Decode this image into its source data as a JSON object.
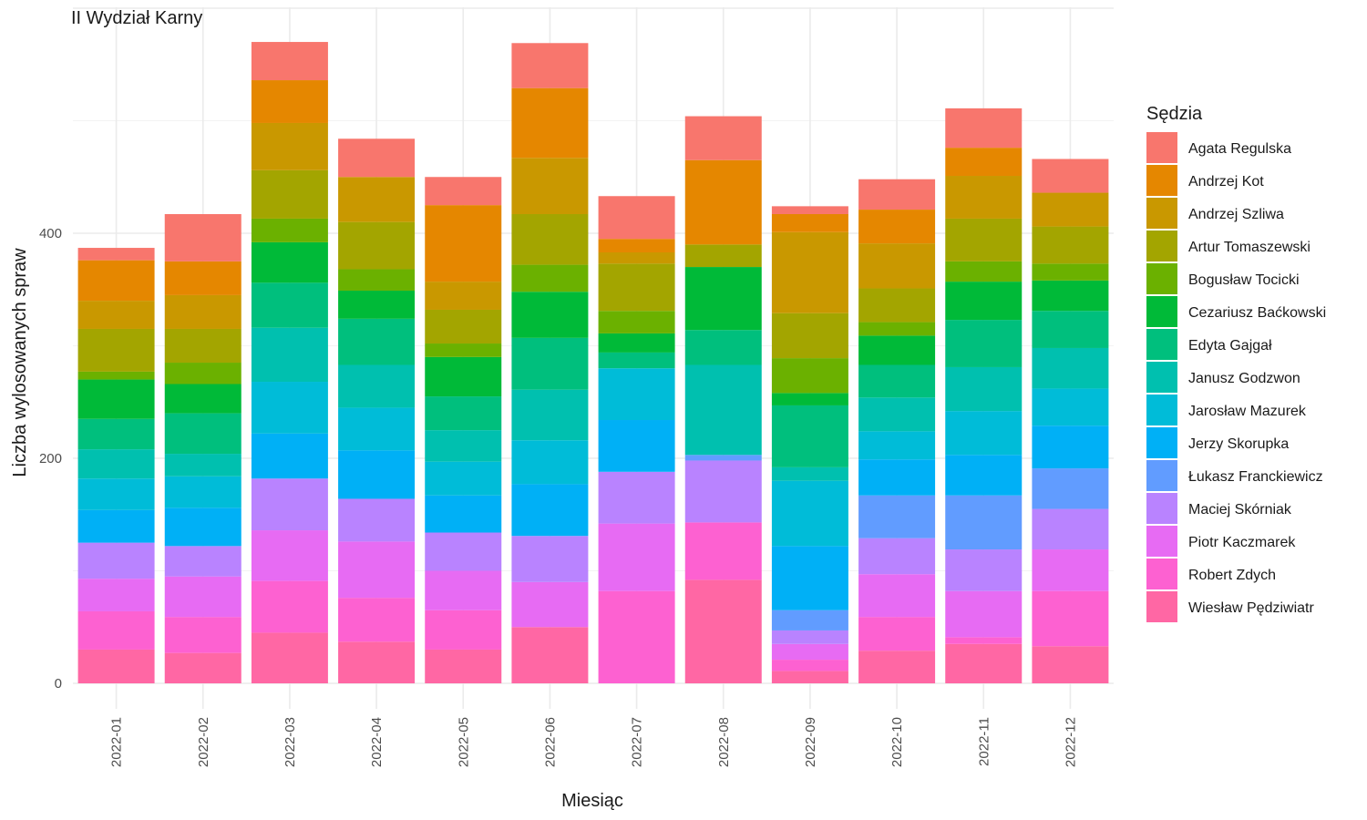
{
  "chart_data": {
    "type": "bar",
    "stacked": true,
    "title": "II Wydział Karny",
    "xlabel": "Miesiąc",
    "ylabel": "Liczba wylosowanych spraw",
    "ylim": [
      0,
      595
    ],
    "yticks": [
      0,
      200,
      400
    ],
    "grid": true,
    "legend_position": "right",
    "legend_title": "Sędzia",
    "categories": [
      "2022-01",
      "2022-02",
      "2022-03",
      "2022-04",
      "2022-05",
      "2022-06",
      "2022-07",
      "2022-08",
      "2022-09",
      "2022-10",
      "2022-11",
      "2022-12"
    ],
    "series": [
      {
        "name": "Agata Regulska",
        "color": "#F8766D",
        "values": [
          11,
          42,
          34,
          34,
          25,
          40,
          38,
          39,
          7,
          27,
          35,
          30
        ]
      },
      {
        "name": "Andrzej Kot",
        "color": "#E58700",
        "values": [
          36,
          30,
          38,
          0,
          68,
          62,
          12,
          75,
          16,
          30,
          25,
          0
        ]
      },
      {
        "name": "Andrzej Szliwa",
        "color": "#C99800",
        "values": [
          25,
          30,
          42,
          40,
          25,
          50,
          10,
          0,
          72,
          40,
          38,
          30
        ]
      },
      {
        "name": "Artur Tomaszewski",
        "color": "#A3A500",
        "values": [
          38,
          30,
          43,
          42,
          30,
          45,
          42,
          20,
          40,
          30,
          38,
          33
        ]
      },
      {
        "name": "Bogusław Tocicki",
        "color": "#6BB100",
        "values": [
          7,
          19,
          21,
          19,
          12,
          24,
          20,
          0,
          31,
          12,
          18,
          15
        ]
      },
      {
        "name": "Cezariusz Baćkowski",
        "color": "#00BA38",
        "values": [
          35,
          26,
          36,
          25,
          35,
          41,
          17,
          56,
          11,
          26,
          34,
          27
        ]
      },
      {
        "name": "Edyta Gajgał",
        "color": "#00BF7D",
        "values": [
          27,
          36,
          40,
          41,
          30,
          46,
          14,
          31,
          55,
          29,
          42,
          33
        ]
      },
      {
        "name": "Janusz Godzwon",
        "color": "#00C0AF",
        "values": [
          26,
          20,
          48,
          38,
          28,
          45,
          0,
          80,
          12,
          30,
          39,
          36
        ]
      },
      {
        "name": "Jarosław Mazurek",
        "color": "#00BCD8",
        "values": [
          28,
          28,
          46,
          38,
          30,
          39,
          46,
          0,
          58,
          25,
          39,
          33
        ]
      },
      {
        "name": "Jerzy Skorupka",
        "color": "#00B0F6",
        "values": [
          29,
          34,
          40,
          43,
          33,
          46,
          46,
          0,
          57,
          32,
          36,
          38
        ]
      },
      {
        "name": "Łukasz Franckiewicz",
        "color": "#619CFF",
        "values": [
          0,
          0,
          0,
          0,
          0,
          0,
          0,
          5,
          18,
          38,
          48,
          36
        ]
      },
      {
        "name": "Maciej Skórniak",
        "color": "#B983FF",
        "values": [
          32,
          27,
          46,
          38,
          34,
          41,
          46,
          55,
          12,
          32,
          37,
          36
        ]
      },
      {
        "name": "Piotr Kaczmarek",
        "color": "#E76BF3",
        "values": [
          29,
          36,
          45,
          50,
          35,
          40,
          60,
          0,
          14,
          38,
          41,
          37
        ]
      },
      {
        "name": "Robert Zdych",
        "color": "#FD61D1",
        "values": [
          34,
          32,
          46,
          39,
          35,
          0,
          82,
          51,
          10,
          30,
          6,
          49
        ]
      },
      {
        "name": "Wiesław Pędziwiatr",
        "color": "#FF67A4",
        "values": [
          30,
          27,
          45,
          37,
          30,
          50,
          0,
          92,
          11,
          29,
          35,
          33
        ]
      }
    ]
  }
}
